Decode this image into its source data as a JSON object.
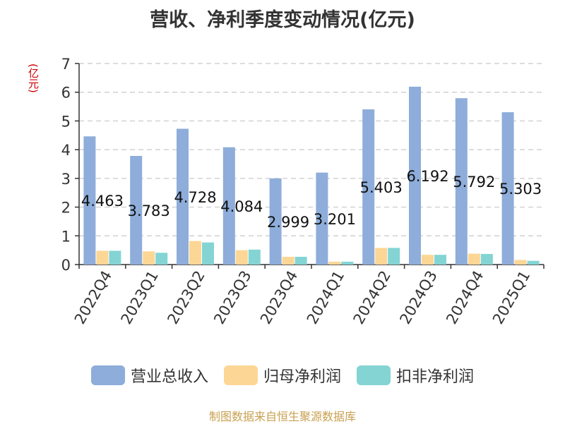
{
  "title": "营收、净利季度变动情况(亿元)",
  "unit_label": "(亿元)",
  "source": "制图数据来自恒生聚源数据库",
  "colors": {
    "revenue": "#8eadda",
    "parent_profit": "#fcd695",
    "non_recurring_profit": "#84d4d4",
    "grid": "#c8c8c8",
    "axis": "#333333"
  },
  "legend": [
    {
      "label": "营业总收入",
      "color": "#8eadda",
      "icon": "rounded-rect-swatch"
    },
    {
      "label": "归母净利润",
      "color": "#fcd695",
      "icon": "rounded-rect-swatch"
    },
    {
      "label": "扣非净利润",
      "color": "#84d4d4",
      "icon": "rounded-rect-swatch"
    }
  ],
  "chart_data": {
    "type": "bar",
    "title": "营收、净利季度变动情况(亿元)",
    "ylabel": "(亿元)",
    "ylim": [
      0,
      7
    ],
    "yticks": [
      "0",
      "1",
      "2",
      "3",
      "4",
      "5",
      "6",
      "7"
    ],
    "grid": true,
    "legend_position": "bottom",
    "categories": [
      "2022Q4",
      "2023Q1",
      "2023Q2",
      "2023Q3",
      "2023Q4",
      "2024Q1",
      "2024Q2",
      "2024Q3",
      "2024Q4",
      "2025Q1"
    ],
    "series": [
      {
        "name": "营业总收入",
        "values": [
          4.463,
          3.783,
          4.728,
          4.084,
          2.999,
          3.201,
          5.403,
          6.192,
          5.792,
          5.303
        ],
        "labels": [
          "4.463",
          "3.783",
          "4.728",
          "4.084",
          "2.999",
          "3.201",
          "5.403",
          "6.192",
          "5.792",
          "5.303"
        ]
      },
      {
        "name": "归母净利润",
        "values": [
          0.48,
          0.46,
          0.82,
          0.5,
          0.27,
          0.1,
          0.58,
          0.34,
          0.38,
          0.16
        ]
      },
      {
        "name": "扣非净利润",
        "values": [
          0.48,
          0.41,
          0.77,
          0.52,
          0.27,
          0.1,
          0.58,
          0.34,
          0.37,
          0.13
        ]
      }
    ]
  }
}
